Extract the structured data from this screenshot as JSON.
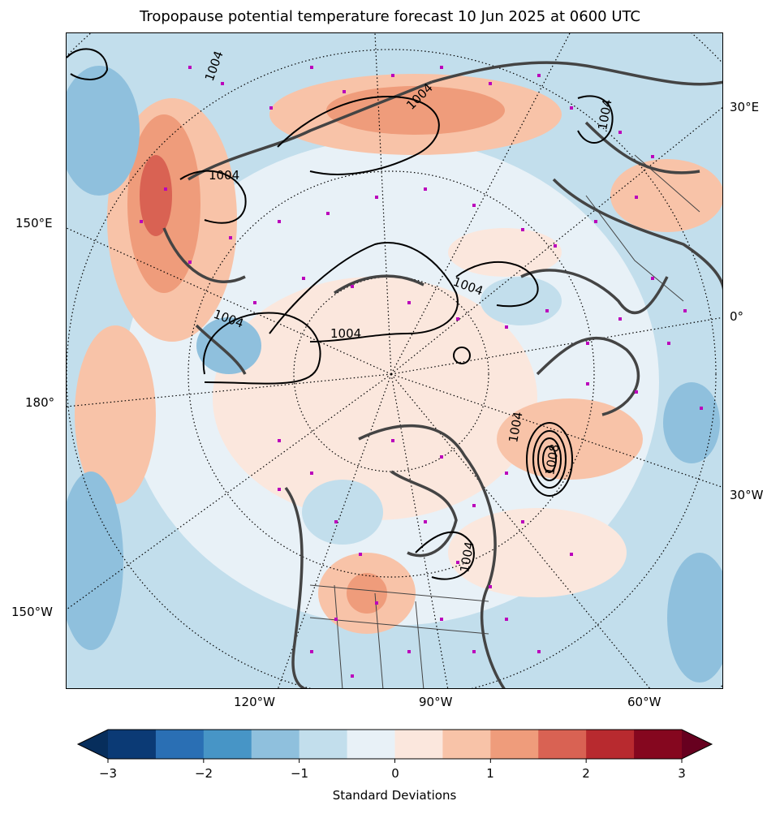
{
  "title": "Tropopause potential temperature forecast 10 Jun 2025 at 0600 UTC",
  "longitude_labels": {
    "e30": "30°E",
    "e150": "150°E",
    "zero": "0°",
    "d180": "180°",
    "w30": "30°W",
    "w150": "150°W",
    "w120": "120°W",
    "w90": "90°W",
    "w60": "60°W"
  },
  "isobar_labels": [
    "1004",
    "1004",
    "1004",
    "1004",
    "1004",
    "1004",
    "1004",
    "1004",
    "1004",
    "1008"
  ],
  "colorbar": {
    "label": "Standard Deviations",
    "ticks": [
      "−3",
      "−2",
      "−1",
      "0",
      "1",
      "2",
      "3"
    ],
    "min": -3,
    "max": 3,
    "step": 0.5,
    "colors": [
      "#0b3a75",
      "#2a6fb4",
      "#4795c6",
      "#8fc0dd",
      "#c2deec",
      "#e8f1f7",
      "#fbe7dd",
      "#f8c3a8",
      "#ef9c7b",
      "#d96253",
      "#b82a2f",
      "#85071f"
    ],
    "extend_low_color": "#072e5c",
    "extend_high_color": "#67001f"
  },
  "colors": {
    "coastline": "#444444",
    "isobar": "#000000",
    "station_marker": "#bb00bb"
  }
}
